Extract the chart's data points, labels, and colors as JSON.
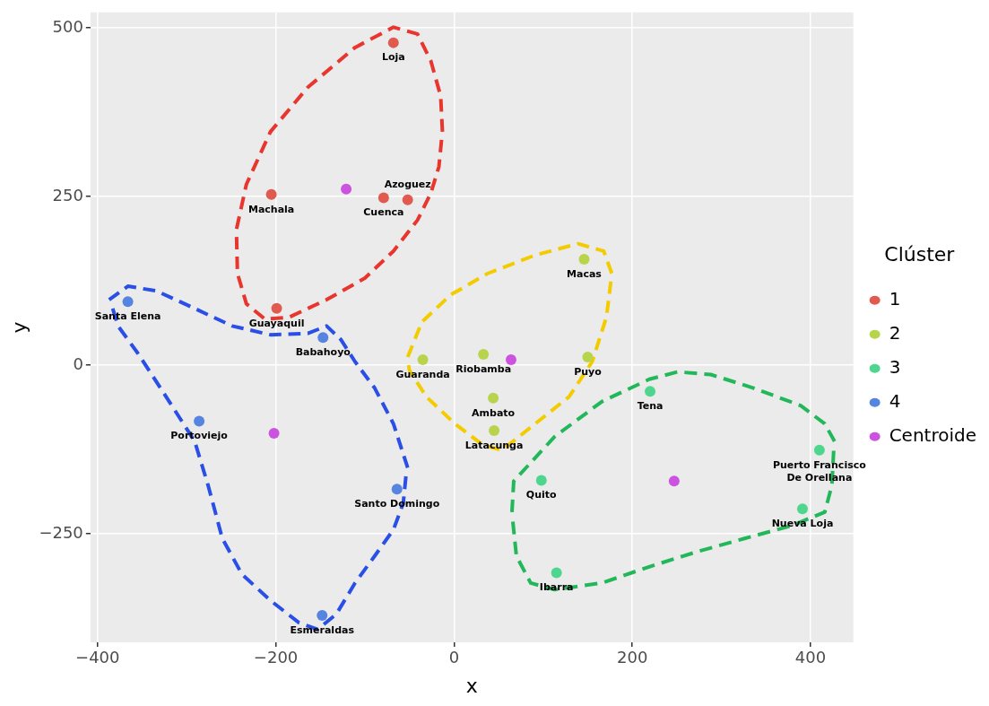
{
  "chart_data": {
    "type": "scatter",
    "xlabel": "x",
    "ylabel": "y",
    "legend_title": "Clúster",
    "xlim": [
      -408,
      448
    ],
    "ylim": [
      -411,
      523
    ],
    "xticks": [
      -400,
      -200,
      0,
      200,
      400
    ],
    "yticks": [
      -250,
      0,
      250,
      500
    ],
    "grid": true,
    "legend": "right",
    "marker": "circle",
    "series": [
      {
        "type": "line",
        "marker": "none",
        "line_style": "dashed",
        "color": "#e8352e",
        "x": [
          -244,
          -233,
          -206,
          -164,
          -111,
          -68,
          -41,
          -26,
          -15,
          -13
        ],
        "values": [
          202,
          268,
          346,
          412,
          471,
          501,
          491,
          451,
          399,
          346
        ]
      },
      {
        "type": "line",
        "marker": "none",
        "line_style": "dashed",
        "color": "#e8352e",
        "x": [
          -244,
          -243,
          -233,
          -212,
          -185,
          -143,
          -100,
          -68,
          -41,
          -26,
          -17,
          -14
        ],
        "values": [
          190,
          136,
          91,
          68,
          71,
          97,
          129,
          169,
          215,
          255,
          294,
          334
        ]
      },
      {
        "type": "line",
        "marker": "none",
        "line_style": "dashed",
        "color": "#f2cc00",
        "x": [
          -52,
          -36,
          -4,
          38,
          91,
          139,
          168,
          177
        ],
        "values": [
          12,
          64,
          104,
          136,
          163,
          180,
          169,
          136
        ]
      },
      {
        "type": "line",
        "marker": "none",
        "line_style": "dashed",
        "color": "#f2cc00",
        "x": [
          -51,
          -50,
          -31,
          1,
          33,
          54,
          91,
          129,
          155,
          171,
          176
        ],
        "values": [
          0,
          -8,
          -47,
          -87,
          -119,
          -126,
          -87,
          -47,
          5,
          71,
          124
        ]
      },
      {
        "type": "line",
        "marker": "none",
        "line_style": "dashed",
        "color": "#22b85a",
        "x": [
          65,
          67,
          113,
          166,
          219,
          251,
          288,
          336,
          389,
          416,
          427
        ],
        "values": [
          -218,
          -172,
          -106,
          -54,
          -21,
          -10,
          -14,
          -34,
          -60,
          -87,
          -113
        ]
      },
      {
        "type": "line",
        "marker": "none",
        "line_style": "dashed",
        "color": "#22b85a",
        "x": [
          66,
          70,
          86,
          113,
          166,
          219,
          272,
          326,
          379,
          416,
          424,
          426
        ],
        "values": [
          -232,
          -283,
          -323,
          -333,
          -323,
          -299,
          -277,
          -257,
          -238,
          -218,
          -178,
          -127
        ]
      },
      {
        "type": "line",
        "marker": "none",
        "line_style": "dashed",
        "color": "#2a4fe6",
        "x": [
          -387,
          -366,
          -334,
          -291,
          -249,
          -206,
          -164,
          -143,
          -127,
          -111,
          -89,
          -68,
          -52
        ],
        "values": [
          97,
          117,
          110,
          84,
          58,
          45,
          47,
          58,
          38,
          5,
          -34,
          -87,
          -152
        ]
      },
      {
        "type": "line",
        "marker": "none",
        "line_style": "dashed",
        "color": "#2a4fe6",
        "x": [
          -383,
          -377,
          -355,
          -323,
          -291,
          -276,
          -260,
          -238,
          -206,
          -174,
          -153,
          -132,
          -111,
          -89,
          -68,
          -57,
          -54
        ],
        "values": [
          84,
          58,
          18,
          -47,
          -113,
          -178,
          -257,
          -310,
          -349,
          -382,
          -392,
          -369,
          -323,
          -283,
          -244,
          -205,
          -165
        ]
      },
      {
        "type": "scatter",
        "name": "1",
        "color": "#e05a50",
        "x": [
          -68,
          -205,
          -79,
          -52,
          -199
        ],
        "values": [
          478,
          253,
          248,
          245,
          84
        ]
      },
      {
        "type": "scatter",
        "name": "2",
        "color": "#b8d44c",
        "x": [
          146,
          -35,
          33,
          150,
          44,
          45
        ],
        "values": [
          157,
          8,
          16,
          12,
          -49,
          -97
        ]
      },
      {
        "type": "scatter",
        "name": "3",
        "color": "#4fd68e",
        "x": [
          220,
          410,
          98,
          391,
          115
        ],
        "values": [
          -39,
          -126,
          -171,
          -213,
          -308
        ]
      },
      {
        "type": "scatter",
        "name": "4",
        "color": "#5585e0",
        "x": [
          -366,
          -147,
          -286,
          -64,
          -148
        ],
        "values": [
          94,
          41,
          -83,
          -184,
          -371
        ]
      },
      {
        "type": "scatter",
        "name": "Centroide",
        "color": "#cc52e0",
        "x": [
          -121,
          64,
          247,
          -202
        ],
        "values": [
          261,
          8,
          -172,
          -101
        ]
      }
    ],
    "annotations": [
      {
        "text": "Loja",
        "x": -68,
        "y": 478
      },
      {
        "text": "Machala",
        "x": -205,
        "y": 253
      },
      {
        "text": "Cuenca",
        "x": -79,
        "y": 248
      },
      {
        "text": "Azoguez",
        "x": -52,
        "y": 245
      },
      {
        "text": "Guayaquil",
        "x": -199,
        "y": 84
      },
      {
        "text": "Santa Elena",
        "x": -366,
        "y": 94
      },
      {
        "text": "Babahoyo",
        "x": -147,
        "y": 41
      },
      {
        "text": "Portoviejo",
        "x": -286,
        "y": -83
      },
      {
        "text": "Santo Domingo",
        "x": -64,
        "y": -184
      },
      {
        "text": "Esmeraldas",
        "x": -148,
        "y": -371
      },
      {
        "text": "Macas",
        "x": 146,
        "y": 157
      },
      {
        "text": "Guaranda",
        "x": -35,
        "y": 8
      },
      {
        "text": "Riobamba",
        "x": 33,
        "y": 16
      },
      {
        "text": "Puyo",
        "x": 150,
        "y": 12
      },
      {
        "text": "Ambato",
        "x": 44,
        "y": -49
      },
      {
        "text": "Latacunga",
        "x": 45,
        "y": -97
      },
      {
        "text": "Tena",
        "x": 220,
        "y": -39
      },
      {
        "text": "Puerto Francisco\nDe Orellana",
        "x": 410,
        "y": -126
      },
      {
        "text": "Quito",
        "x": 98,
        "y": -171
      },
      {
        "text": "Ibarra",
        "x": 115,
        "y": -308
      },
      {
        "text": "Nueva Loja",
        "x": 391,
        "y": -213
      }
    ]
  }
}
